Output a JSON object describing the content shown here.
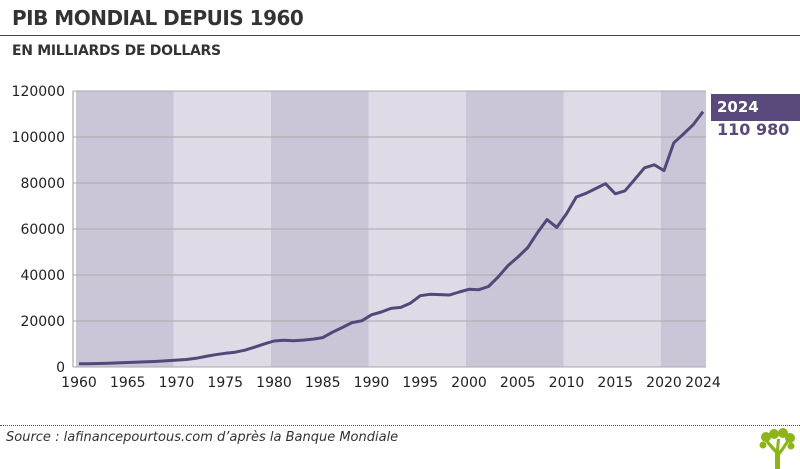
{
  "header": {
    "title": "PIB MONDIAL DEPUIS 1960",
    "subtitle": "EN MILLIARDS DE DOLLARS"
  },
  "footer": {
    "source": "Source : lafinancepourtous.com d’après la Banque Mondiale",
    "logo": "tree-logo",
    "logo_color": "#8db51a"
  },
  "callout": {
    "year": "2024",
    "value": "110 980"
  },
  "colors": {
    "line": "#56477a",
    "band_dark": "#cac6d8",
    "band_light": "#dedbe6",
    "accent": "#5a4a7c"
  },
  "chart_data": {
    "type": "line",
    "title": "PIB MONDIAL DEPUIS 1960",
    "ylabel": "EN MILLIARDS DE DOLLARS",
    "xlim": [
      1960,
      2024
    ],
    "ylim": [
      0,
      120000
    ],
    "grid": true,
    "xticks": [
      1960,
      1965,
      1970,
      1975,
      1980,
      1985,
      1990,
      1995,
      2000,
      2005,
      2010,
      2015,
      2020,
      2024
    ],
    "yticks": [
      0,
      20000,
      40000,
      60000,
      80000,
      100000,
      120000
    ],
    "bands": [
      [
        1960,
        1970,
        "dark"
      ],
      [
        1970,
        1980,
        "light"
      ],
      [
        1980,
        1990,
        "dark"
      ],
      [
        1990,
        2000,
        "light"
      ],
      [
        2000,
        2010,
        "dark"
      ],
      [
        2010,
        2020,
        "light"
      ],
      [
        2020,
        2024,
        "dark"
      ]
    ],
    "x": [
      1960,
      1961,
      1962,
      1963,
      1964,
      1965,
      1966,
      1967,
      1968,
      1969,
      1970,
      1971,
      1972,
      1973,
      1974,
      1975,
      1976,
      1977,
      1978,
      1979,
      1980,
      1981,
      1982,
      1983,
      1984,
      1985,
      1986,
      1987,
      1988,
      1989,
      1990,
      1991,
      1992,
      1993,
      1994,
      1995,
      1996,
      1997,
      1998,
      1999,
      2000,
      2001,
      2002,
      2003,
      2004,
      2005,
      2006,
      2007,
      2008,
      2009,
      2010,
      2011,
      2012,
      2013,
      2014,
      2015,
      2016,
      2017,
      2018,
      2019,
      2020,
      2021,
      2022,
      2023,
      2024
    ],
    "values": [
      1390,
      1440,
      1530,
      1650,
      1800,
      1960,
      2120,
      2260,
      2430,
      2680,
      2990,
      3280,
      3780,
      4600,
      5330,
      5950,
      6450,
      7290,
      8590,
      10060,
      11290,
      11600,
      11410,
      11700,
      12120,
      12780,
      15120,
      17180,
      19300,
      20100,
      22700,
      23900,
      25500,
      25900,
      27800,
      31000,
      31600,
      31500,
      31300,
      32600,
      33800,
      33600,
      35000,
      39200,
      44100,
      47800,
      51800,
      58300,
      64100,
      60700,
      66600,
      73900,
      75500,
      77600,
      79700,
      75300,
      76600,
      81600,
      86600,
      87900,
      85400,
      97500,
      101300,
      105400,
      110980
    ]
  }
}
